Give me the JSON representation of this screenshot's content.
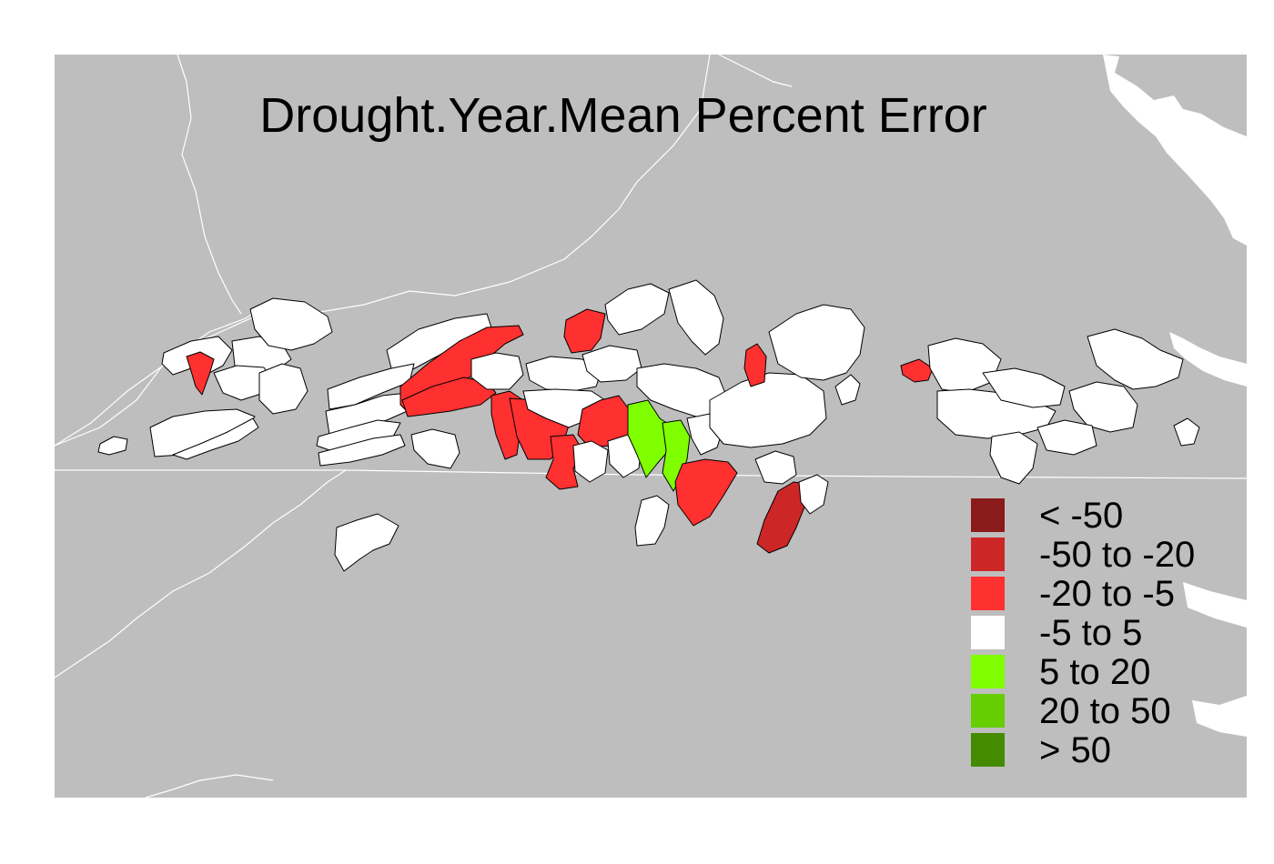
{
  "map": {
    "title": "Drought.Year.Mean Percent Error",
    "background_color": "#bebebe",
    "border_color": "#ffffff",
    "legend": {
      "placement": "bottom-right",
      "items": [
        {
          "label": "< -50",
          "color": "#8b1a1a"
        },
        {
          "label": "-50 to -20",
          "color": "#cd2626"
        },
        {
          "label": "-20 to -5",
          "color": "#ff3030"
        },
        {
          "label": "-5 to 5",
          "color": "#ffffff"
        },
        {
          "label": "5 to 20",
          "color": "#7fff00"
        },
        {
          "label": "20 to 50",
          "color": "#66cd00"
        },
        {
          "label": "> 50",
          "color": "#458b00"
        }
      ]
    }
  }
}
